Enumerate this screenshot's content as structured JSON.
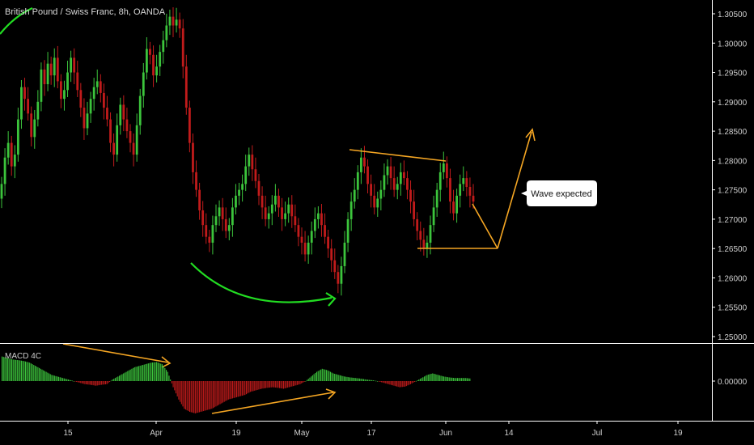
{
  "chart_data": {
    "type": "candlestick",
    "title": "British Pound / Swiss Franc, 8h, OANDA",
    "ylim": [
      1.248,
      1.307
    ],
    "y_ticks": [
      "1.30500",
      "1.30000",
      "1.29500",
      "1.29000",
      "1.28500",
      "1.28000",
      "1.27500",
      "1.27000",
      "1.26500",
      "1.26000",
      "1.25500",
      "1.25000"
    ],
    "x_ticks": [
      "15",
      "Apr",
      "19",
      "May",
      "17",
      "Jun",
      "14",
      "Jul",
      "19"
    ],
    "macd": {
      "label": "MACD 4C",
      "zero_label": "0.00000",
      "colors": {
        "positive": "#3cc43c",
        "negative": "#c11b1b"
      }
    },
    "series": [
      {
        "values": [
          1.2735,
          1.276,
          1.2805,
          1.283,
          1.279,
          1.281,
          1.287,
          1.2925,
          1.2905,
          1.288,
          1.284,
          1.287,
          1.29,
          1.2955,
          1.293,
          1.2965,
          1.2945,
          1.2975,
          1.2935,
          1.2905,
          1.292,
          1.295,
          1.2975,
          1.295,
          1.292,
          1.289,
          1.2855,
          1.288,
          1.2905,
          1.2925,
          1.2935,
          1.2915,
          1.289,
          1.287,
          1.283,
          1.281,
          1.286,
          1.2895,
          1.287,
          1.285,
          1.283,
          1.281,
          1.286,
          1.291,
          1.295,
          1.299,
          1.298,
          1.2945,
          1.296,
          1.2985,
          1.3005,
          1.303,
          1.3045,
          1.303,
          1.304,
          1.3025,
          1.296,
          1.289,
          1.283,
          1.278,
          1.275,
          1.2715,
          1.269,
          1.267,
          1.266,
          1.269,
          1.2705,
          1.272,
          1.27,
          1.268,
          1.269,
          1.272,
          1.274,
          1.275,
          1.276,
          1.279,
          1.281,
          1.2785,
          1.2765,
          1.274,
          1.272,
          1.27,
          1.271,
          1.2725,
          1.274,
          1.272,
          1.27,
          1.271,
          1.2725,
          1.2705,
          1.269,
          1.267,
          1.266,
          1.264,
          1.266,
          1.268,
          1.27,
          1.271,
          1.269,
          1.267,
          1.265,
          1.263,
          1.261,
          1.259,
          1.262,
          1.266,
          1.27,
          1.273,
          1.275,
          1.278,
          1.2805,
          1.279,
          1.276,
          1.274,
          1.272,
          1.2735,
          1.275,
          1.2775,
          1.279,
          1.277,
          1.275,
          1.276,
          1.278,
          1.277,
          1.275,
          1.273,
          1.27,
          1.268,
          1.2665,
          1.265,
          1.266,
          1.269,
          1.272,
          1.275,
          1.278,
          1.2795,
          1.277,
          1.273,
          1.271,
          1.274,
          1.276,
          1.277,
          1.2755,
          1.274
        ],
        "close": [
          1.276,
          1.2805,
          1.283,
          1.279,
          1.281,
          1.287,
          1.2925,
          1.2905,
          1.288,
          1.284,
          1.287,
          1.29,
          1.2955,
          1.293,
          1.2965,
          1.2945,
          1.2975,
          1.2935,
          1.2905,
          1.292,
          1.295,
          1.2975,
          1.295,
          1.292,
          1.289,
          1.2855,
          1.288,
          1.2905,
          1.2925,
          1.2935,
          1.2915,
          1.289,
          1.287,
          1.283,
          1.281,
          1.286,
          1.2895,
          1.287,
          1.285,
          1.283,
          1.281,
          1.286,
          1.291,
          1.295,
          1.299,
          1.298,
          1.2945,
          1.296,
          1.2985,
          1.3005,
          1.303,
          1.3045,
          1.303,
          1.304,
          1.3025,
          1.296,
          1.289,
          1.283,
          1.278,
          1.275,
          1.2715,
          1.269,
          1.267,
          1.266,
          1.269,
          1.2705,
          1.272,
          1.27,
          1.268,
          1.269,
          1.272,
          1.274,
          1.275,
          1.276,
          1.279,
          1.281,
          1.2785,
          1.2765,
          1.274,
          1.272,
          1.27,
          1.271,
          1.2725,
          1.274,
          1.272,
          1.27,
          1.271,
          1.2725,
          1.2705,
          1.269,
          1.267,
          1.266,
          1.264,
          1.266,
          1.268,
          1.27,
          1.271,
          1.269,
          1.267,
          1.265,
          1.263,
          1.261,
          1.259,
          1.262,
          1.266,
          1.27,
          1.273,
          1.275,
          1.278,
          1.2805,
          1.279,
          1.276,
          1.274,
          1.272,
          1.2735,
          1.275,
          1.2775,
          1.279,
          1.277,
          1.275,
          1.276,
          1.278,
          1.277,
          1.275,
          1.273,
          1.27,
          1.268,
          1.2665,
          1.265,
          1.266,
          1.269,
          1.272,
          1.275,
          1.278,
          1.2795,
          1.277,
          1.273,
          1.271,
          1.274,
          1.276,
          1.277,
          1.2755,
          1.274,
          1.273
        ]
      }
    ],
    "macd_values": [
      0.8,
      0.75,
      0.7,
      0.68,
      0.65,
      0.6,
      0.5,
      0.4,
      0.3,
      0.2,
      0.15,
      0.1,
      0.05,
      0.0,
      -0.05,
      -0.1,
      -0.12,
      -0.15,
      -0.12,
      -0.1,
      0.05,
      0.15,
      0.25,
      0.35,
      0.45,
      0.5,
      0.55,
      0.6,
      0.62,
      0.55,
      0.3,
      -0.2,
      -0.6,
      -0.9,
      -1.0,
      -1.05,
      -1.0,
      -0.95,
      -0.9,
      -0.8,
      -0.7,
      -0.6,
      -0.55,
      -0.5,
      -0.45,
      -0.35,
      -0.3,
      -0.25,
      -0.22,
      -0.2,
      -0.22,
      -0.25,
      -0.2,
      -0.15,
      -0.1,
      0.0,
      0.15,
      0.3,
      0.4,
      0.35,
      0.25,
      0.2,
      0.15,
      0.12,
      0.1,
      0.08,
      0.05,
      0.03,
      0.0,
      -0.05,
      -0.1,
      -0.15,
      -0.2,
      -0.18,
      -0.1,
      0.0,
      0.1,
      0.2,
      0.25,
      0.2,
      0.15,
      0.12,
      0.1,
      0.1,
      0.1,
      0.08
    ],
    "annotations": [
      {
        "type": "callout",
        "text": "Wave expected"
      }
    ]
  },
  "colors": {
    "bull": "#3cc43c",
    "bear": "#c11b1b",
    "orange": "#f5a623",
    "green_curve": "#22dd22",
    "axis_line": "#ffffff"
  }
}
